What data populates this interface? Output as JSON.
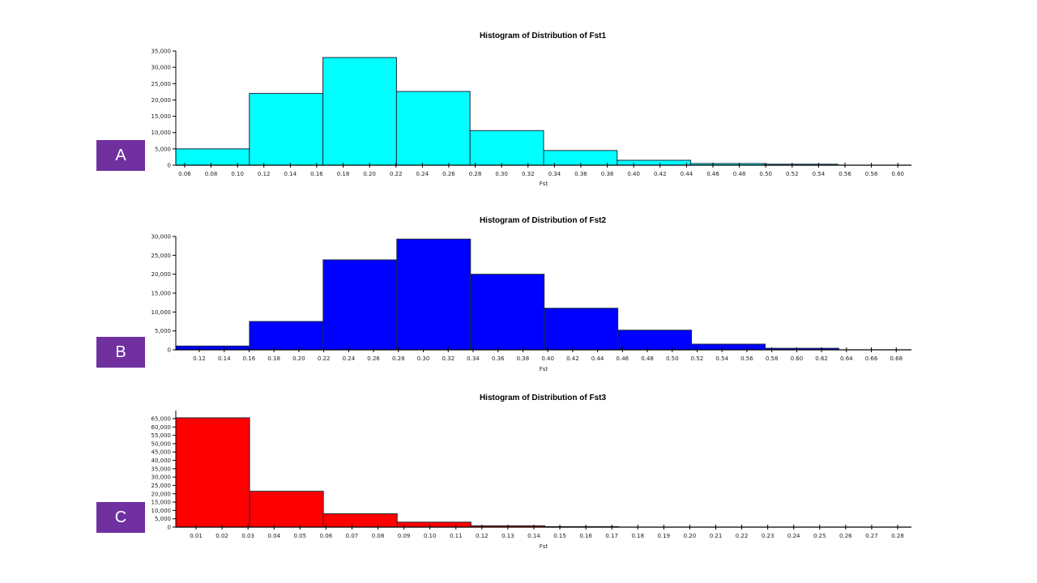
{
  "panel_labels": [
    "A",
    "B",
    "C"
  ],
  "chart_data": [
    {
      "type": "bar",
      "title": "Histogram of Distribution of Fst1",
      "xlabel": "Fst",
      "ylabel": "",
      "color": "#00FFFF",
      "bin_edges": [
        0.0533,
        0.109,
        0.1647,
        0.2204,
        0.2761,
        0.3318,
        0.3875,
        0.4432,
        0.4989,
        0.5546
      ],
      "values": [
        5000,
        22000,
        33000,
        22600,
        10600,
        4500,
        1500,
        500,
        300
      ],
      "xlim": [
        0.0533,
        0.6103
      ],
      "ylim": [
        0,
        35000
      ],
      "xticks": [
        "0.06",
        "0.08",
        "0.10",
        "0.12",
        "0.14",
        "0.16",
        "0.18",
        "0.20",
        "0.22",
        "0.24",
        "0.26",
        "0.28",
        "0.30",
        "0.32",
        "0.34",
        "0.36",
        "0.38",
        "0.40",
        "0.42",
        "0.44",
        "0.46",
        "0.48",
        "0.50",
        "0.52",
        "0.54",
        "0.56",
        "0.58",
        "0.60"
      ],
      "yticks": [
        "0",
        "5,000",
        "10,000",
        "15,000",
        "20,000",
        "25,000",
        "30,000",
        "35,000"
      ],
      "grid": false
    },
    {
      "type": "bar",
      "title": "Histogram of Distribution of Fst2",
      "xlabel": "Fst",
      "ylabel": "",
      "color": "#0000FF",
      "bin_edges": [
        0.1011,
        0.1603,
        0.2195,
        0.2787,
        0.3379,
        0.3971,
        0.4563,
        0.5155,
        0.5747,
        0.6339
      ],
      "values": [
        1000,
        7500,
        23800,
        29300,
        20000,
        11000,
        5200,
        1500,
        400
      ],
      "xlim": [
        0.1011,
        0.6922
      ],
      "ylim": [
        0,
        30000
      ],
      "xticks": [
        "0.12",
        "0.14",
        "0.16",
        "0.18",
        "0.20",
        "0.22",
        "0.24",
        "0.26",
        "0.28",
        "0.30",
        "0.32",
        "0.34",
        "0.36",
        "0.38",
        "0.40",
        "0.42",
        "0.44",
        "0.46",
        "0.48",
        "0.50",
        "0.52",
        "0.54",
        "0.56",
        "0.58",
        "0.60",
        "0.62",
        "0.64",
        "0.66",
        "0.68"
      ],
      "yticks": [
        "0",
        "5,000",
        "10,000",
        "15,000",
        "20,000",
        "25,000",
        "30,000"
      ],
      "grid": false
    },
    {
      "type": "bar",
      "title": "Histogram of Distribution of Fst3",
      "xlabel": "Fst",
      "ylabel": "",
      "color": "#FF0000",
      "bin_edges": [
        0.0022,
        0.0306,
        0.059,
        0.0874,
        0.1158,
        0.1442,
        0.1726
      ],
      "values": [
        65500,
        21500,
        8000,
        3000,
        800,
        300
      ],
      "xlim": [
        0.0022,
        0.2853
      ],
      "ylim": [
        0,
        70000
      ],
      "xticks": [
        "0.01",
        "0.02",
        "0.03",
        "0.04",
        "0.05",
        "0.06",
        "0.07",
        "0.08",
        "0.09",
        "0.10",
        "0.11",
        "0.12",
        "0.13",
        "0.14",
        "0.15",
        "0.16",
        "0.17",
        "0.18",
        "0.19",
        "0.20",
        "0.21",
        "0.22",
        "0.23",
        "0.24",
        "0.25",
        "0.26",
        "0.27",
        "0.28"
      ],
      "yticks": [
        "0",
        "5,000",
        "10,000",
        "15,000",
        "20,000",
        "25,000",
        "30,000",
        "35,000",
        "40,000",
        "45,000",
        "50,000",
        "55,000",
        "60,000",
        "65,000"
      ],
      "grid": false
    }
  ]
}
